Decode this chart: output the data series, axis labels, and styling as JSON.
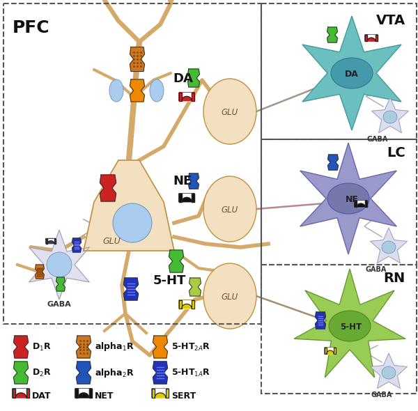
{
  "bg_color": "#ffffff",
  "neuron_soma_color_pfc": "#F2E0C0",
  "neuron_soma_color_gaba_pfc": "#e0e0ee",
  "neuron_soma_color_gaba_bs": "#ddddf0",
  "neuron_soma_color_vta": "#6BBFBF",
  "neuron_soma_color_lc": "#9999CC",
  "neuron_soma_color_rn": "#99CC55",
  "axon_color": "#D4A96A",
  "axon_edge": "#C09040",
  "connection_da": "#9A9A8A",
  "connection_ne": "#BB8888",
  "connection_5ht": "#A09070",
  "receptor_D1R": "#CC2222",
  "receptor_D2R": "#44BB33",
  "receptor_alpha1R_base": "#CC7722",
  "receptor_alpha2R": "#2255BB",
  "receptor_5HT2AR": "#EE8800",
  "receptor_5HT1AR": "#2233BB",
  "DAT_color": "#CC2222",
  "NET_color": "#111111",
  "SERT_color": "#DDCC00",
  "VTA_label": "VTA",
  "LC_label": "LC",
  "RN_label": "RN",
  "PFC_label": "PFC",
  "nucleus_color_vta": "#4499AA",
  "nucleus_color_lc": "#7777AA",
  "nucleus_color_rn": "#66AA33"
}
